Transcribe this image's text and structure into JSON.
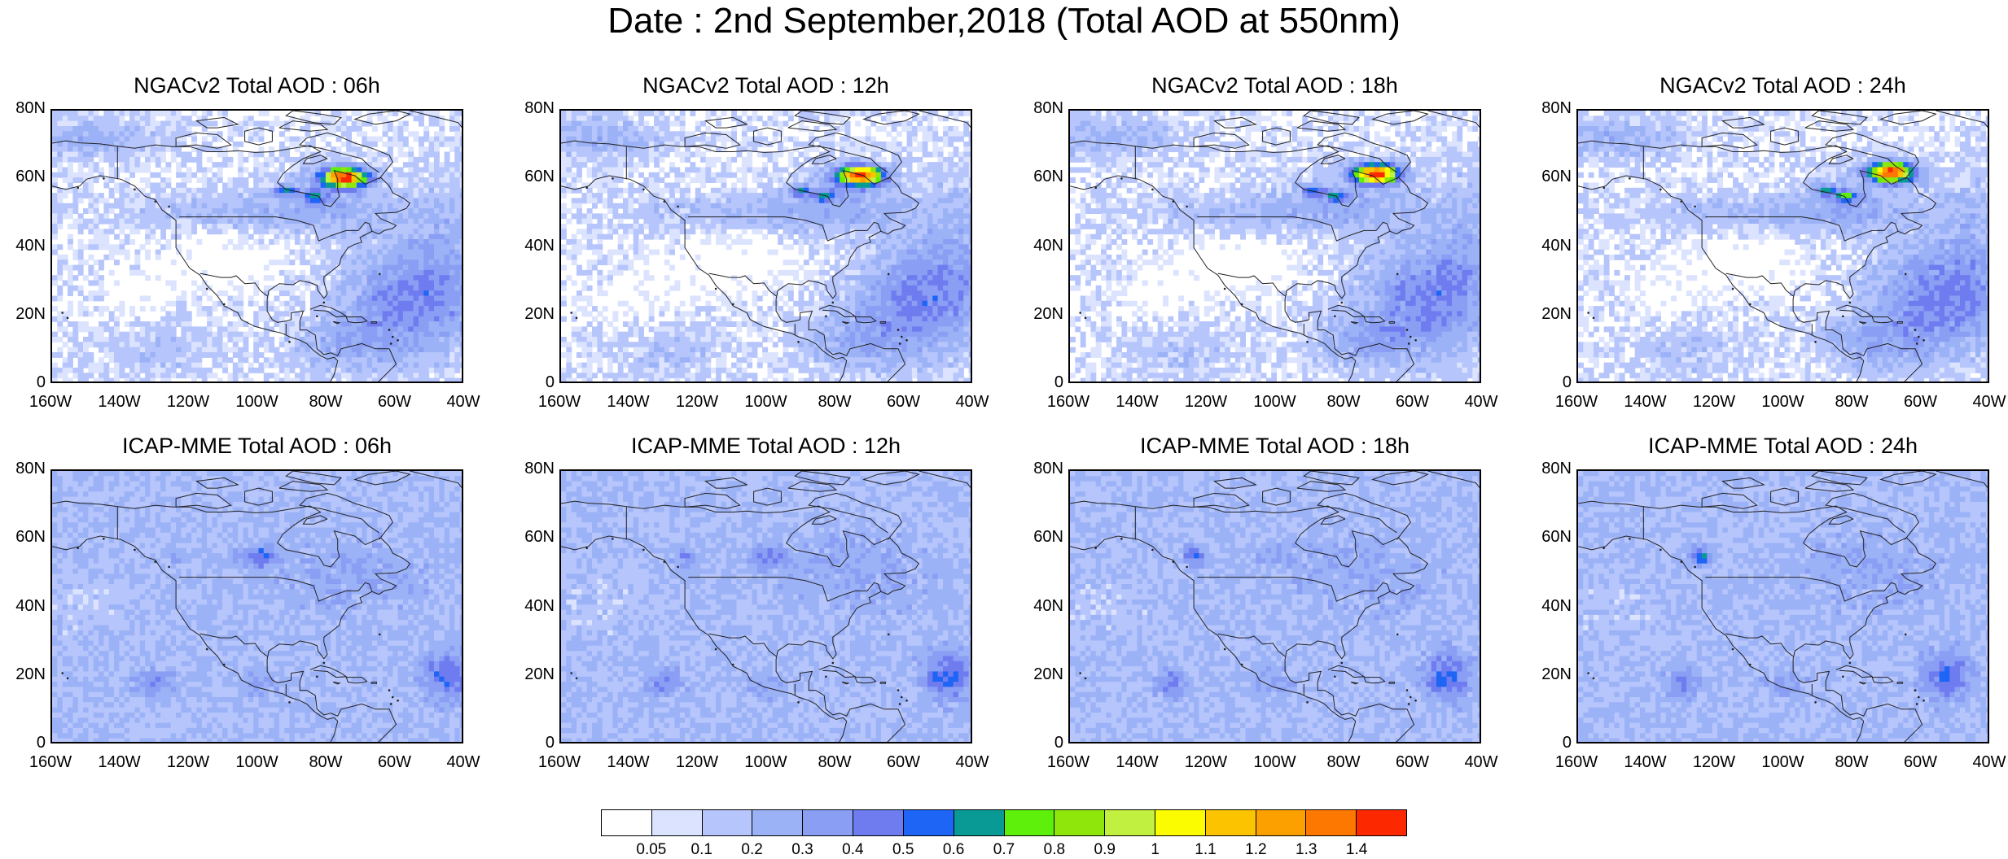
{
  "title": "Date : 2nd September,2018 (Total AOD at 550nm)",
  "map_view": {
    "lat_range": [
      0,
      80
    ],
    "lon_range": [
      -160,
      -40
    ],
    "lat_ticks": [
      "80N",
      "60N",
      "40N",
      "20N",
      "0"
    ],
    "lon_ticks": [
      "160W",
      "140W",
      "120W",
      "100W",
      "80W",
      "60W",
      "40W"
    ]
  },
  "panels": [
    {
      "title": "NGACv2 Total AOD : 06h",
      "model": "NGAC",
      "hour": 6
    },
    {
      "title": "NGACv2 Total AOD : 12h",
      "model": "NGAC",
      "hour": 12
    },
    {
      "title": "NGACv2 Total AOD : 18h",
      "model": "NGAC",
      "hour": 18
    },
    {
      "title": "NGACv2 Total AOD : 24h",
      "model": "NGAC",
      "hour": 24
    },
    {
      "title": "ICAP-MME Total AOD : 06h",
      "model": "ICAP",
      "hour": 6
    },
    {
      "title": "ICAP-MME Total AOD : 12h",
      "model": "ICAP",
      "hour": 12
    },
    {
      "title": "ICAP-MME Total AOD : 18h",
      "model": "ICAP",
      "hour": 18
    },
    {
      "title": "ICAP-MME Total AOD : 24h",
      "model": "ICAP",
      "hour": 24
    }
  ],
  "colorbar": {
    "levels": [
      "0.05",
      "0.1",
      "0.2",
      "0.3",
      "0.4",
      "0.5",
      "0.6",
      "0.7",
      "0.8",
      "0.9",
      "1",
      "1.1",
      "1.2",
      "1.3",
      "1.4"
    ],
    "colors": [
      "#ffffff",
      "#dbe3ff",
      "#b6c5fb",
      "#9cb2f7",
      "#8a9ef4",
      "#6f7cf0",
      "#1e64f5",
      "#0a9a96",
      "#5ef00a",
      "#8ee60a",
      "#c2f040",
      "#fcfc00",
      "#fcc400",
      "#fca000",
      "#fc7800",
      "#fc2800"
    ]
  }
}
